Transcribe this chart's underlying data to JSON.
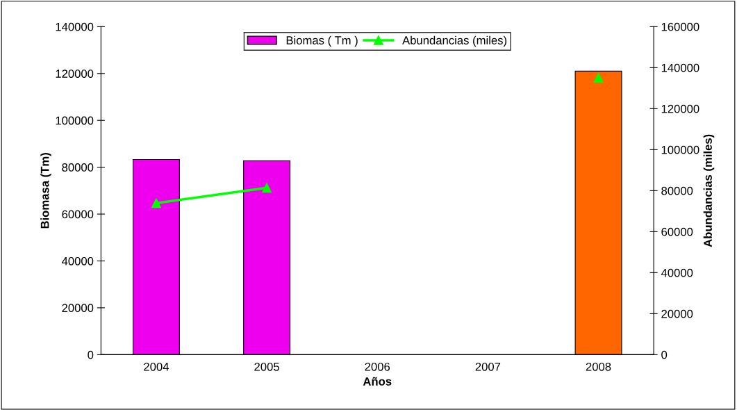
{
  "chart_data": {
    "type": "bar",
    "xlabel": "Años",
    "ylabel": "Biomasa (Tm)",
    "y2label": "Abundancias (miles)",
    "categories": [
      "2004",
      "2005",
      "2006",
      "2007",
      "2008"
    ],
    "series": [
      {
        "name": "Biomas ( Tm )",
        "color": "#ee00ee",
        "colors": [
          "#ee00ee",
          "#ee00ee",
          null,
          null,
          "#ff6600"
        ],
        "values": [
          83300,
          82800,
          null,
          null,
          121000
        ]
      },
      {
        "name": "Abundancias (miles)",
        "type": "line",
        "axis": "y2",
        "color": "#00ff00",
        "marker": "triangle",
        "values": [
          73900,
          81400,
          null,
          null,
          135000
        ]
      }
    ],
    "ylim": [
      0,
      140000
    ],
    "yticks": [
      0,
      20000,
      40000,
      60000,
      80000,
      100000,
      120000,
      140000
    ],
    "y2lim": [
      0,
      160000
    ],
    "y2ticks": [
      0,
      20000,
      40000,
      60000,
      80000,
      100000,
      120000,
      140000,
      160000
    ],
    "grid": false,
    "legend": "top"
  }
}
